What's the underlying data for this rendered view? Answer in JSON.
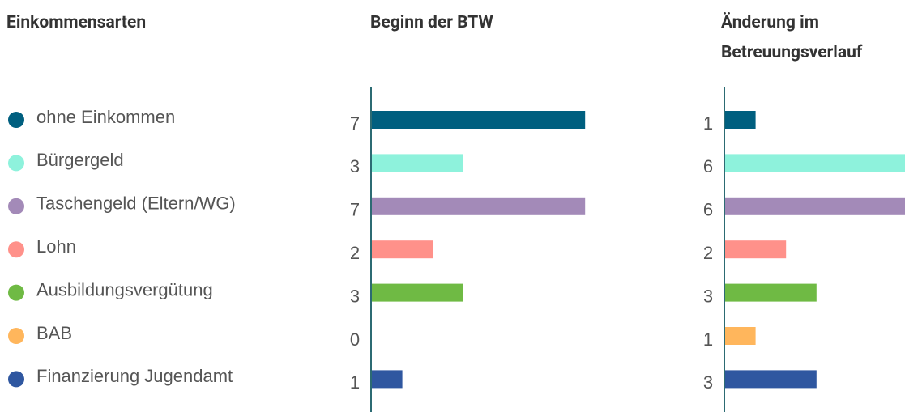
{
  "chart_data": {
    "type": "bar",
    "legend_title": "Einkommensarten",
    "categories": [
      "ohne Einkommen",
      "Bürgergeld",
      "Taschengeld (Eltern/WG)",
      "Lohn",
      "Ausbildungsvergütung",
      "BAB",
      "Finanzierung Jugendamt"
    ],
    "colors": [
      "#005f7f",
      "#8ef2dc",
      "#a38ab8",
      "#ff918a",
      "#6fba44",
      "#ffb65c",
      "#2f57a0"
    ],
    "series": [
      {
        "name": "Beginn der BTW",
        "values": [
          7,
          3,
          7,
          2,
          3,
          0,
          1
        ]
      },
      {
        "name": "Änderung im Betreuungsverlauf",
        "values": [
          1,
          6,
          6,
          2,
          3,
          1,
          3
        ]
      }
    ]
  }
}
